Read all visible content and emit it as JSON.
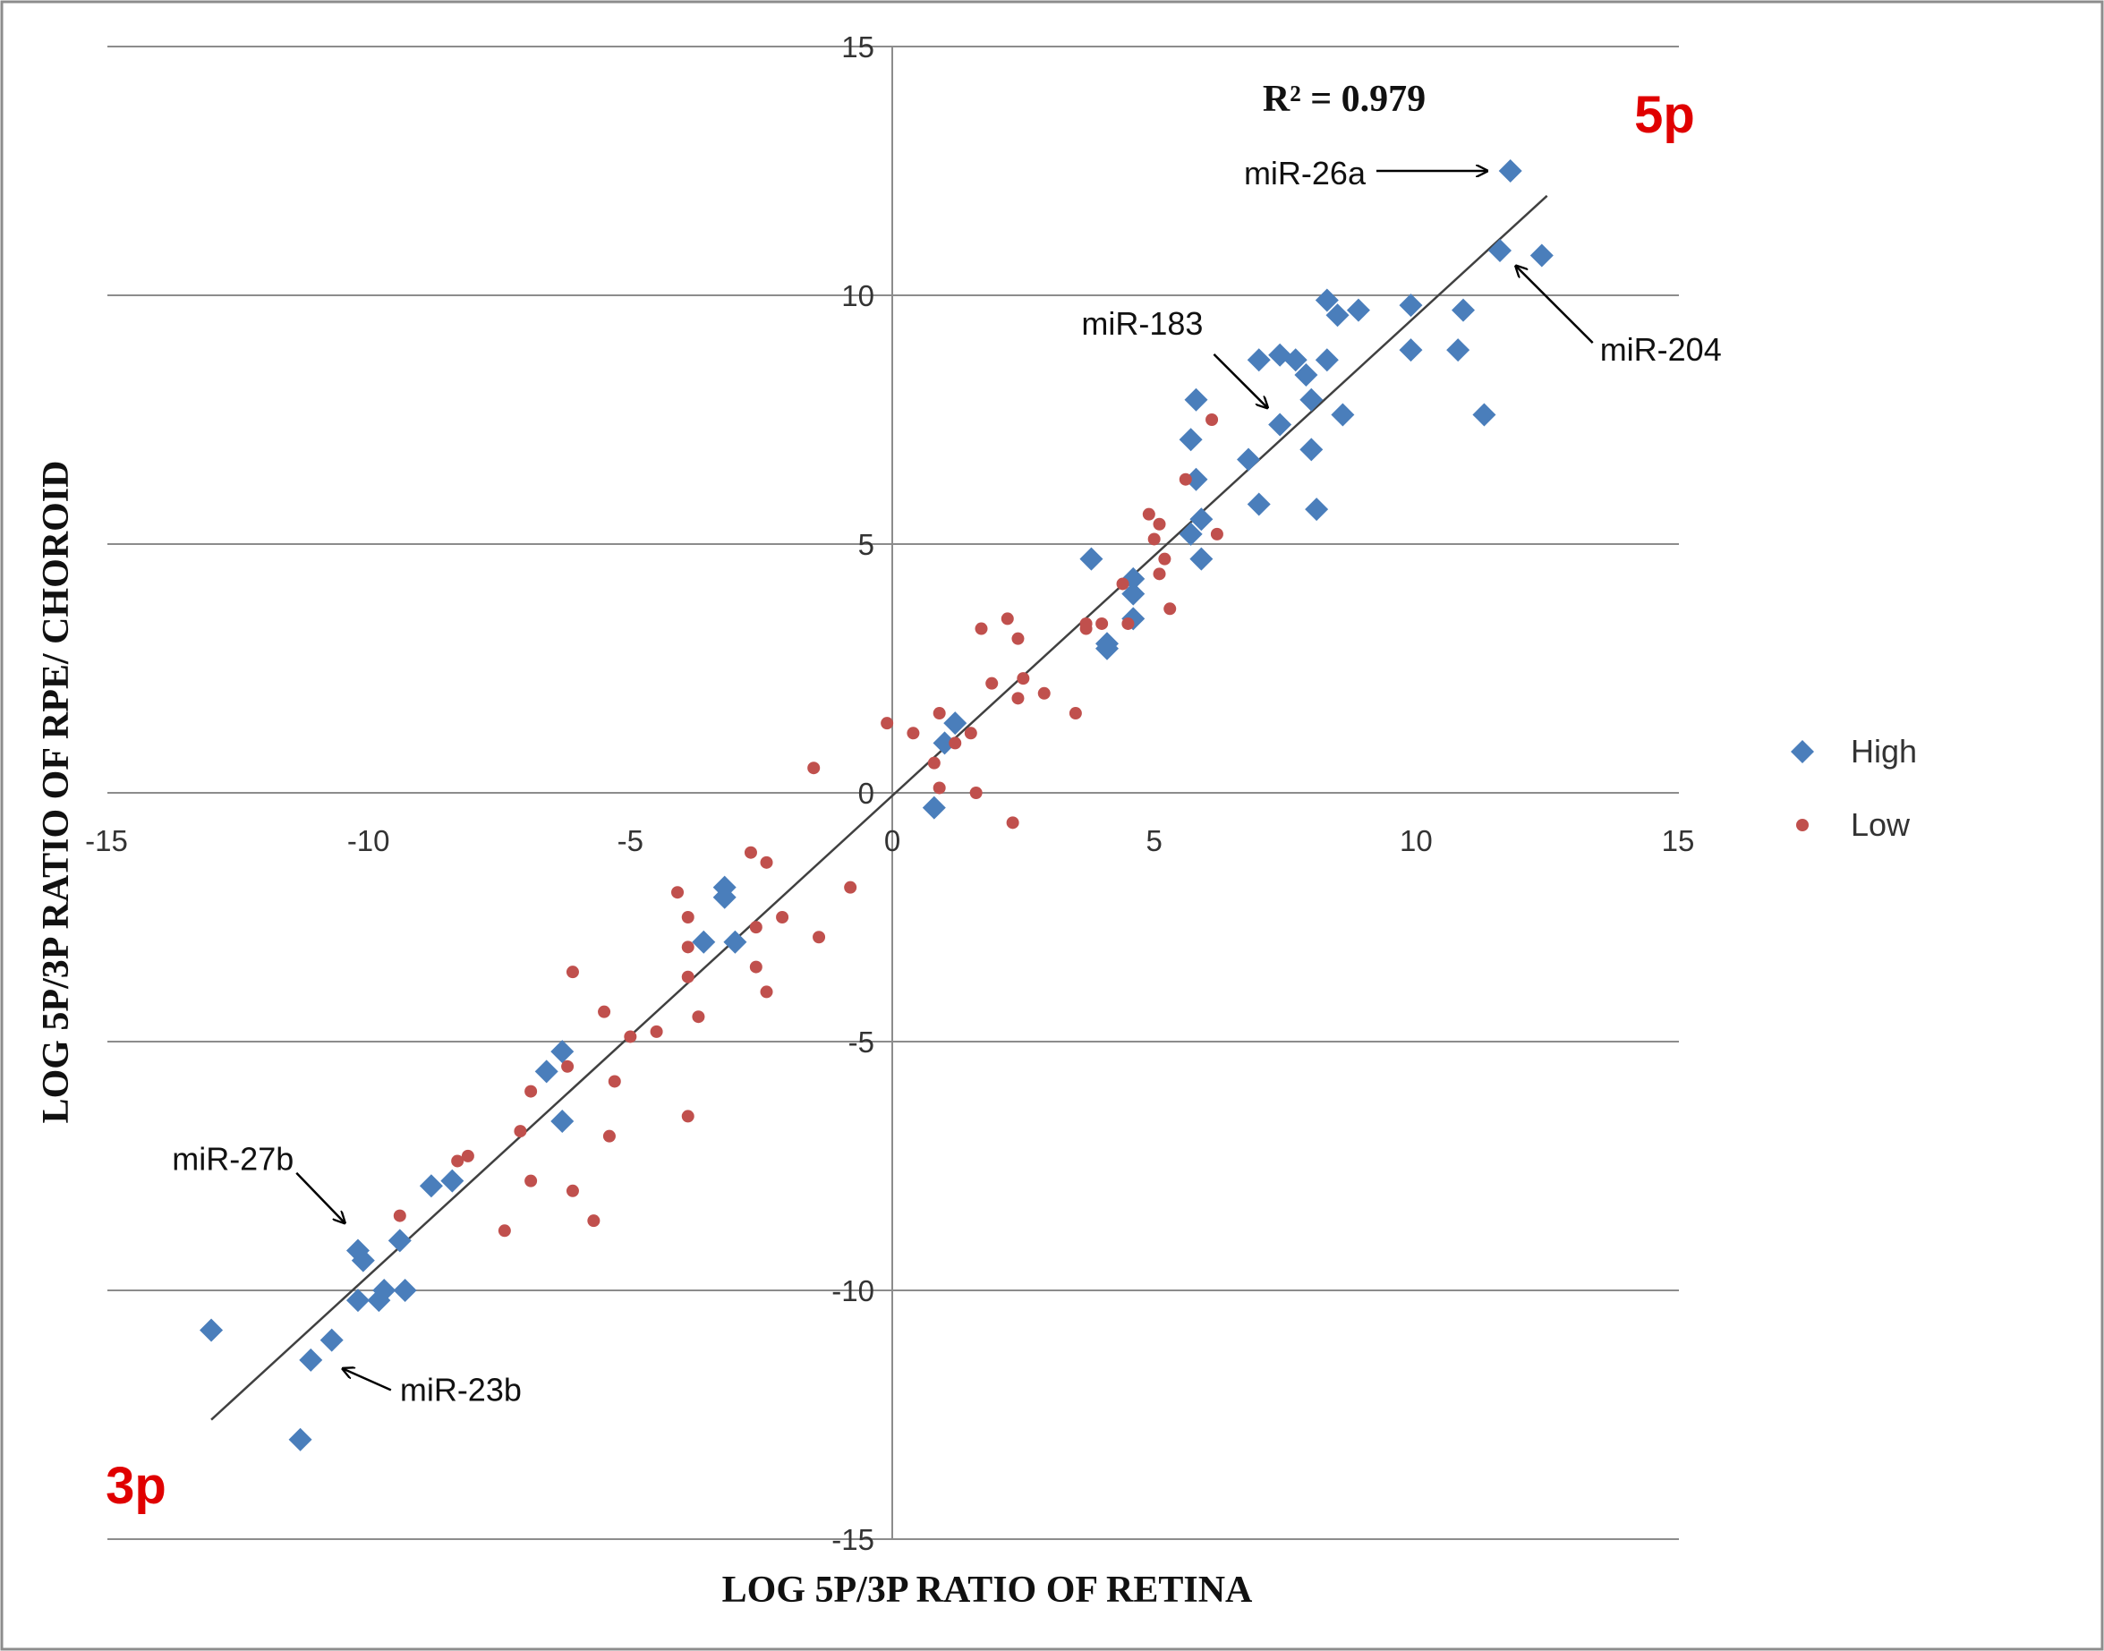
{
  "chart_data": {
    "type": "scatter",
    "xlabel": "LOG 5P/3P RATIO OF RETINA",
    "ylabel": "LOG 5P/3P RATIO OF RPE/ CHOROID",
    "xlim": [
      -15,
      15
    ],
    "ylim": [
      -15,
      15
    ],
    "x_ticks": [
      -15,
      -10,
      -5,
      0,
      5,
      10,
      15
    ],
    "y_ticks": [
      -15,
      -10,
      -5,
      0,
      5,
      10,
      15
    ],
    "grid": "horizontal",
    "legend_position": "right",
    "r_squared_label": "R² = 0.979",
    "corner_labels": {
      "top_right": "5p",
      "bottom_left": "3p"
    },
    "trendline": {
      "x": [
        -13,
        12.5
      ],
      "y": [
        -12.6,
        12.0
      ]
    },
    "series": [
      {
        "name": "High",
        "marker": "diamond",
        "color": "#4a7ebb",
        "points": [
          [
            11.8,
            12.5
          ],
          [
            11.6,
            10.9
          ],
          [
            12.4,
            10.8
          ],
          [
            10.9,
            9.7
          ],
          [
            9.9,
            9.8
          ],
          [
            9.9,
            8.9
          ],
          [
            10.8,
            8.9
          ],
          [
            11.3,
            7.6
          ],
          [
            8.3,
            9.9
          ],
          [
            8.5,
            9.6
          ],
          [
            8.9,
            9.7
          ],
          [
            8.3,
            8.7
          ],
          [
            7.4,
            8.8
          ],
          [
            7.7,
            8.7
          ],
          [
            7.0,
            8.7
          ],
          [
            7.9,
            8.4
          ],
          [
            8.0,
            7.9
          ],
          [
            8.6,
            7.6
          ],
          [
            7.4,
            7.4
          ],
          [
            8.0,
            6.9
          ],
          [
            6.8,
            6.7
          ],
          [
            7.0,
            5.8
          ],
          [
            8.1,
            5.7
          ],
          [
            5.8,
            7.9
          ],
          [
            5.7,
            7.1
          ],
          [
            5.8,
            6.3
          ],
          [
            5.9,
            5.5
          ],
          [
            5.7,
            5.2
          ],
          [
            5.9,
            4.7
          ],
          [
            3.8,
            4.7
          ],
          [
            4.6,
            4.3
          ],
          [
            4.6,
            4.0
          ],
          [
            4.6,
            3.5
          ],
          [
            4.1,
            3.0
          ],
          [
            4.1,
            2.9
          ],
          [
            1.2,
            1.4
          ],
          [
            1.0,
            1.0
          ],
          [
            0.8,
            -0.3
          ],
          [
            -3.2,
            -1.9
          ],
          [
            -3.2,
            -2.1
          ],
          [
            -3.0,
            -3.0
          ],
          [
            -3.6,
            -3.0
          ],
          [
            -6.3,
            -5.2
          ],
          [
            -6.6,
            -5.6
          ],
          [
            -6.3,
            -6.6
          ],
          [
            -8.4,
            -7.8
          ],
          [
            -8.8,
            -7.9
          ],
          [
            -10.2,
            -9.2
          ],
          [
            -10.1,
            -9.4
          ],
          [
            -9.4,
            -9.0
          ],
          [
            -9.3,
            -10.0
          ],
          [
            -9.7,
            -10.0
          ],
          [
            -9.8,
            -10.2
          ],
          [
            -10.2,
            -10.2
          ],
          [
            -13.0,
            -10.8
          ],
          [
            -10.7,
            -11.0
          ],
          [
            -11.1,
            -11.4
          ],
          [
            -11.3,
            -13.0
          ]
        ]
      },
      {
        "name": "Low",
        "marker": "circle",
        "color": "#c0504d",
        "points": [
          [
            6.1,
            7.5
          ],
          [
            5.6,
            6.3
          ],
          [
            4.9,
            5.6
          ],
          [
            5.1,
            5.4
          ],
          [
            6.2,
            5.2
          ],
          [
            5.0,
            5.1
          ],
          [
            5.1,
            4.4
          ],
          [
            5.2,
            4.7
          ],
          [
            5.3,
            3.7
          ],
          [
            4.4,
            4.2
          ],
          [
            3.7,
            3.4
          ],
          [
            4.0,
            3.4
          ],
          [
            4.5,
            3.4
          ],
          [
            3.7,
            3.3
          ],
          [
            2.2,
            3.5
          ],
          [
            1.7,
            3.3
          ],
          [
            2.4,
            3.1
          ],
          [
            2.5,
            2.3
          ],
          [
            1.9,
            2.2
          ],
          [
            2.9,
            2.0
          ],
          [
            2.4,
            1.9
          ],
          [
            3.5,
            1.6
          ],
          [
            1.5,
            1.2
          ],
          [
            0.9,
            1.6
          ],
          [
            -0.1,
            1.4
          ],
          [
            0.4,
            1.2
          ],
          [
            1.2,
            1.0
          ],
          [
            0.8,
            0.6
          ],
          [
            0.9,
            0.1
          ],
          [
            1.6,
            0.0
          ],
          [
            2.3,
            -0.6
          ],
          [
            -1.5,
            0.5
          ],
          [
            -0.8,
            -1.9
          ],
          [
            -1.4,
            -2.9
          ],
          [
            -2.1,
            -2.5
          ],
          [
            -2.6,
            -2.7
          ],
          [
            -2.7,
            -1.2
          ],
          [
            -2.4,
            -1.4
          ],
          [
            -4.1,
            -2.0
          ],
          [
            -3.9,
            -2.5
          ],
          [
            -3.9,
            -3.1
          ],
          [
            -3.9,
            -3.7
          ],
          [
            -3.7,
            -4.5
          ],
          [
            -2.6,
            -3.5
          ],
          [
            -2.4,
            -4.0
          ],
          [
            -4.5,
            -4.8
          ],
          [
            -5.0,
            -4.9
          ],
          [
            -5.5,
            -4.4
          ],
          [
            -5.3,
            -5.8
          ],
          [
            -5.4,
            -6.9
          ],
          [
            -3.9,
            -6.5
          ],
          [
            -6.1,
            -3.6
          ],
          [
            -6.2,
            -5.5
          ],
          [
            -6.1,
            -8.0
          ],
          [
            -5.7,
            -8.6
          ],
          [
            -6.9,
            -6.0
          ],
          [
            -7.1,
            -6.8
          ],
          [
            -6.9,
            -7.8
          ],
          [
            -8.1,
            -7.3
          ],
          [
            -8.3,
            -7.4
          ],
          [
            -7.4,
            -8.8
          ],
          [
            -9.4,
            -8.5
          ]
        ]
      }
    ],
    "annotations": [
      {
        "text": "miR-26a",
        "target": [
          11.6,
          12.5
        ]
      },
      {
        "text": "miR-204",
        "target": [
          11.8,
          10.7
        ]
      },
      {
        "text": "miR-183",
        "target": [
          7.2,
          7.7
        ]
      },
      {
        "text": "miR-27b",
        "target": [
          -10.4,
          -8.7
        ]
      },
      {
        "text": "miR-23b",
        "target": [
          -10.8,
          -11.5
        ]
      }
    ]
  }
}
